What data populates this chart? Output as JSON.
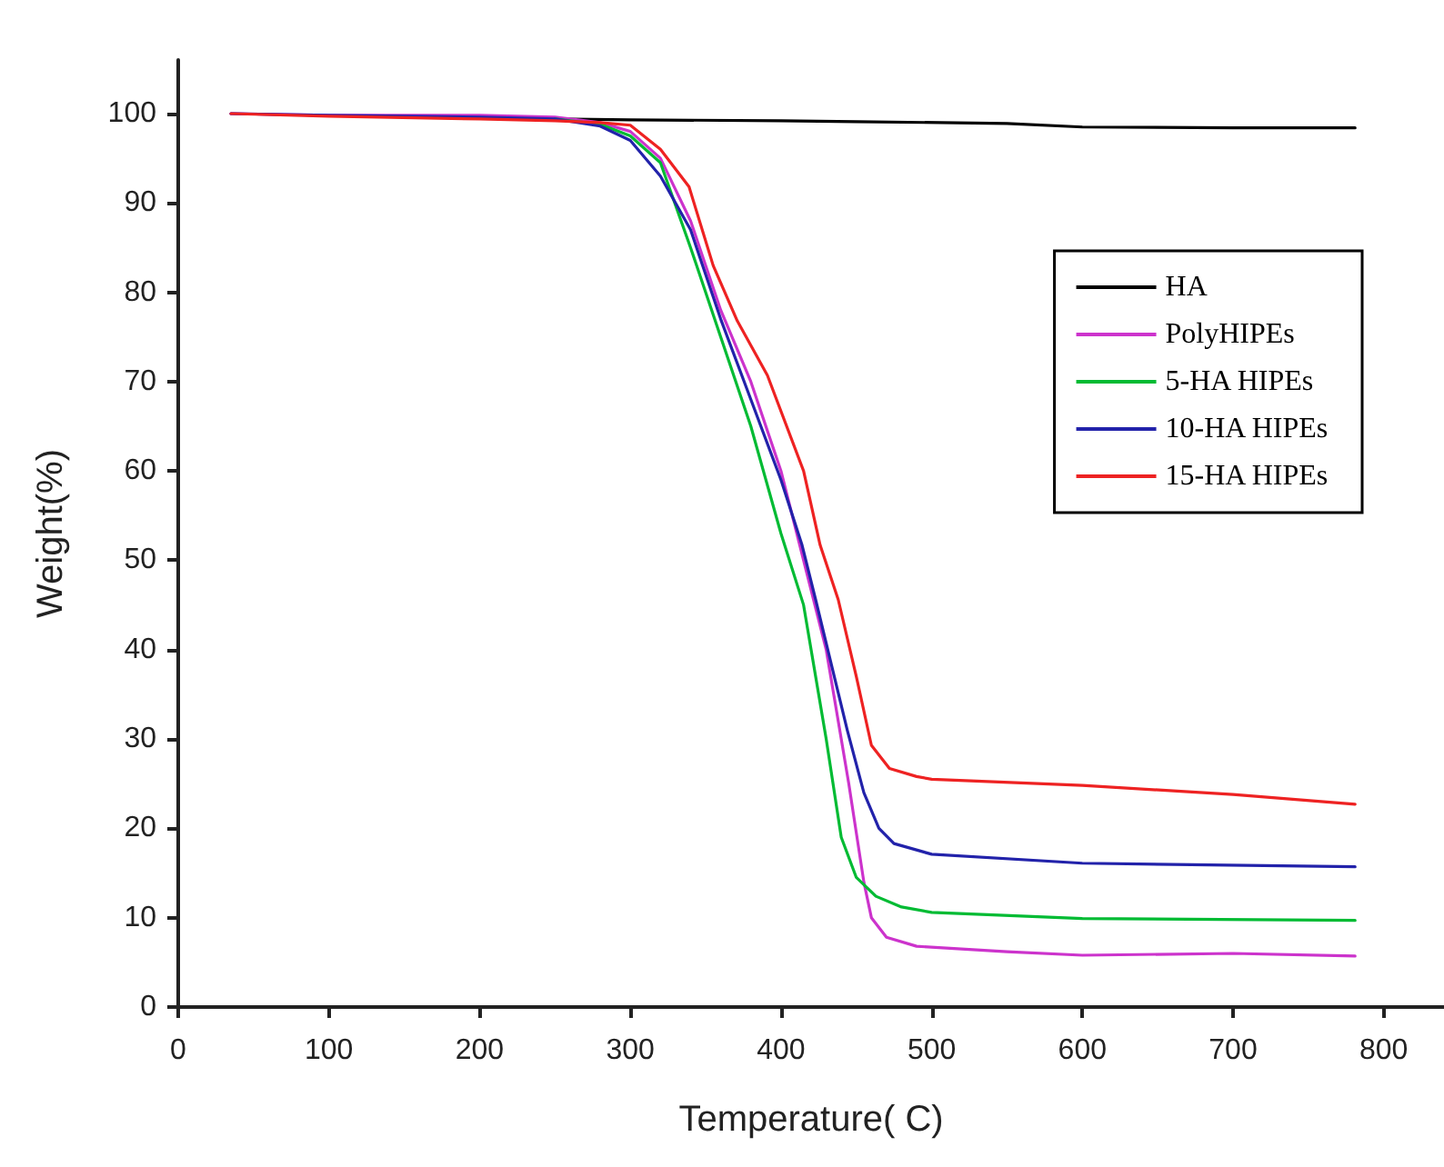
{
  "chart_data": {
    "type": "line",
    "xlabel": "Temperature( C)",
    "ylabel": "Weight(%)",
    "xlim": [
      0,
      840
    ],
    "ylim": [
      0,
      106
    ],
    "xticks": [
      0,
      100,
      200,
      300,
      400,
      500,
      600,
      700,
      800
    ],
    "yticks": [
      0,
      10,
      20,
      30,
      40,
      50,
      60,
      70,
      80,
      90,
      100
    ],
    "grid": false,
    "legend": "right",
    "marker": "none",
    "line_style": "solid",
    "series": [
      {
        "name": "HA",
        "color": "#000000",
        "x": [
          250,
          300,
          400,
          450,
          550,
          600,
          700,
          781
        ],
        "values": [
          99.4,
          99.3,
          99.2,
          99.1,
          98.9,
          98.5,
          98.4,
          98.4
        ]
      },
      {
        "name": "PolyHIPEs",
        "color": "#cc33cc",
        "x": [
          35,
          100,
          200,
          250,
          280,
          300,
          320,
          340,
          360,
          380,
          400,
          412,
          430,
          445,
          455,
          460,
          470,
          490,
          550,
          600,
          700,
          781
        ],
        "values": [
          100,
          99.8,
          99.8,
          99.6,
          99,
          98,
          95,
          88,
          78,
          70,
          60,
          52,
          40,
          25,
          14,
          10,
          7.8,
          6.8,
          6.2,
          5.8,
          6,
          5.7
        ]
      },
      {
        "name": "5-HA HIPEs",
        "color": "#00bb33",
        "x": [
          250,
          280,
          300,
          320,
          340,
          360,
          380,
          400,
          415,
          430,
          440,
          450,
          463,
          480,
          500,
          600,
          781
        ],
        "values": [
          99.4,
          98.8,
          97.5,
          94.5,
          85,
          75,
          65,
          53,
          45,
          30,
          19,
          14.5,
          12.4,
          11.2,
          10.6,
          9.9,
          9.7
        ]
      },
      {
        "name": "10-HA HIPEs",
        "color": "#2222aa",
        "x": [
          35,
          100,
          200,
          250,
          280,
          300,
          320,
          340,
          360,
          380,
          400,
          414,
          423,
          444,
          455,
          465,
          475,
          500,
          600,
          781
        ],
        "values": [
          100,
          99.8,
          99.6,
          99.4,
          98.6,
          97,
          93,
          87,
          77,
          68,
          59,
          51.7,
          45.6,
          31,
          24,
          20,
          18.3,
          17.1,
          16.1,
          15.7
        ]
      },
      {
        "name": "15-HA HIPEs",
        "color": "#ee2222",
        "x": [
          35,
          100,
          200,
          250,
          280,
          300,
          320,
          339,
          355,
          371,
          391,
          415,
          426,
          438,
          450,
          460,
          472,
          490,
          500,
          600,
          700,
          781
        ],
        "values": [
          100,
          99.7,
          99.4,
          99.2,
          99,
          98.7,
          96,
          91.8,
          83,
          76.8,
          70.7,
          60,
          51.7,
          45.6,
          37,
          29.3,
          26.7,
          25.8,
          25.5,
          24.8,
          23.8,
          22.7
        ]
      }
    ]
  }
}
